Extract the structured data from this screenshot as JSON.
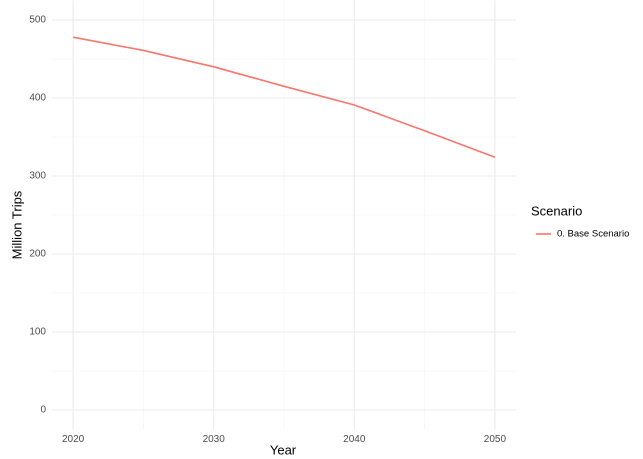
{
  "chart_data": {
    "type": "line",
    "x_label": "Year",
    "y_label": "Million Trips",
    "x": [
      2020,
      2025,
      2030,
      2035,
      2040,
      2045,
      2050
    ],
    "series": [
      {
        "name": "0. Base Scenario",
        "color": "#f8766d",
        "values": [
          478,
          461,
          440,
          415,
          391,
          358,
          324
        ]
      }
    ],
    "legend_title": "Scenario",
    "legend": "right",
    "xlim": [
      2018.5,
      2051.5
    ],
    "xticks": [
      2020,
      2030,
      2040,
      2050
    ],
    "ylim": [
      -25,
      525
    ],
    "yticks": [
      0,
      100,
      200,
      300,
      400,
      500
    ],
    "x_minor_grid": [
      2025,
      2035,
      2045
    ],
    "y_minor_grid": [
      50,
      150,
      250,
      350,
      450
    ],
    "grid": true
  }
}
